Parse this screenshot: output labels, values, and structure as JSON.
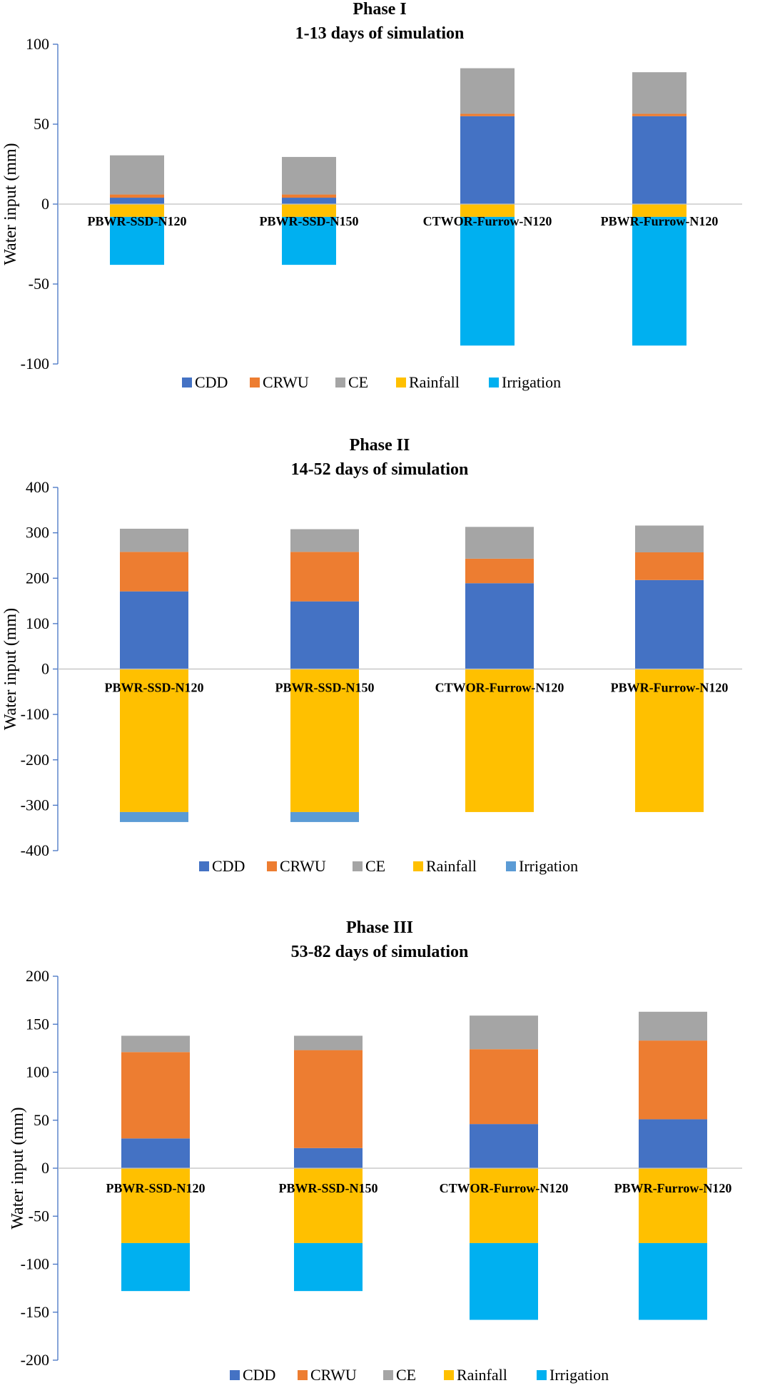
{
  "chart_data": [
    {
      "type": "bar",
      "stacked": true,
      "title": "Phase I",
      "subtitle": "1-13 days of simulation",
      "ylabel": "Water input (mm)",
      "ylim": [
        -100,
        100
      ],
      "yticks": [
        -100,
        -50,
        0,
        50,
        100
      ],
      "categories": [
        "PBWR-SSD-N120",
        "PBWR-SSD-N150",
        "CTWOR-Furrow-N120",
        "PBWR-Furrow-N120"
      ],
      "series": [
        {
          "name": "CDD",
          "color": "#4472C4",
          "values": [
            4,
            4,
            55,
            55
          ]
        },
        {
          "name": "CRWU",
          "color": "#ED7D31",
          "values": [
            2,
            2,
            1.5,
            1.5
          ]
        },
        {
          "name": "CE",
          "color": "#A5A5A5",
          "values": [
            24.5,
            23.5,
            28.5,
            26
          ]
        },
        {
          "name": "Rainfall",
          "color": "#FFC000",
          "values": [
            -8,
            -8,
            -8,
            -8
          ]
        },
        {
          "name": "Irrigation",
          "color": "#00B0F0",
          "values": [
            -30,
            -30,
            -80.5,
            -80.5
          ]
        }
      ]
    },
    {
      "type": "bar",
      "stacked": true,
      "title": "Phase II",
      "subtitle": "14-52 days of simulation",
      "ylabel": "Water input (mm)",
      "ylim": [
        -400,
        400
      ],
      "yticks": [
        -400,
        -300,
        -200,
        -100,
        0,
        100,
        200,
        300,
        400
      ],
      "categories": [
        "PBWR-SSD-N120",
        "PBWR-SSD-N150",
        "CTWOR-Furrow-N120",
        "PBWR-Furrow-N120"
      ],
      "series": [
        {
          "name": "CDD",
          "color": "#4472C4",
          "values": [
            171,
            149,
            189,
            196
          ]
        },
        {
          "name": "CRWU",
          "color": "#ED7D31",
          "values": [
            87,
            109,
            54,
            61
          ]
        },
        {
          "name": "CE",
          "color": "#A5A5A5",
          "values": [
            51,
            50,
            70,
            59
          ]
        },
        {
          "name": "Rainfall",
          "color": "#FFC000",
          "values": [
            -315,
            -315,
            -315,
            -315
          ]
        },
        {
          "name": "Irrigation",
          "color": "#5B9BD5",
          "values": [
            -22,
            -22,
            0,
            0
          ]
        }
      ]
    },
    {
      "type": "bar",
      "stacked": true,
      "title": "Phase III",
      "subtitle": "53-82 days of simulation",
      "ylabel": "Water input (mm)",
      "ylim": [
        -200,
        200
      ],
      "yticks": [
        -200,
        -150,
        -100,
        -50,
        0,
        50,
        100,
        150,
        200
      ],
      "categories": [
        "PBWR-SSD-N120",
        "PBWR-SSD-N150",
        "CTWOR-Furrow-N120",
        "PBWR-Furrow-N120"
      ],
      "series": [
        {
          "name": "CDD",
          "color": "#4472C4",
          "values": [
            31,
            21,
            46,
            51
          ]
        },
        {
          "name": "CRWU",
          "color": "#ED7D31",
          "values": [
            90,
            102,
            78,
            82
          ]
        },
        {
          "name": "CE",
          "color": "#A5A5A5",
          "values": [
            17,
            15,
            35,
            30
          ]
        },
        {
          "name": "Rainfall",
          "color": "#FFC000",
          "values": [
            -78,
            -78,
            -78,
            -78
          ]
        },
        {
          "name": "Irrigation",
          "color": "#00B0F0",
          "values": [
            -50,
            -50,
            -80,
            -80
          ]
        }
      ]
    }
  ]
}
